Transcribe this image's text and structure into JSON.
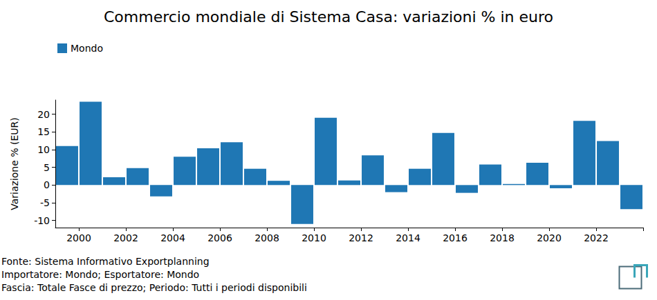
{
  "chart_data": {
    "type": "bar",
    "title": "Commercio mondiale di Sistema Casa: variazioni % in euro",
    "y_label": "Variazione % (EUR)",
    "categories": [
      null,
      "2000",
      null,
      "2002",
      null,
      "2004",
      null,
      "2006",
      null,
      "2008",
      null,
      "2010",
      null,
      "2012",
      null,
      "2014",
      null,
      "2016",
      null,
      "2018",
      null,
      "2020",
      null,
      "2022",
      null
    ],
    "series": [
      {
        "name": "Mondo",
        "color": "#1f77b4",
        "values": [
          11,
          23.5,
          2.2,
          4.8,
          -3.2,
          8,
          10.4,
          12.1,
          4.6,
          1.2,
          -11,
          19,
          1.3,
          8.4,
          -2,
          4.6,
          14.7,
          -2.2,
          5.8,
          0.3,
          6.3,
          -0.9,
          18.1,
          12.4,
          -6.8
        ]
      }
    ],
    "ylim": [
      -12,
      24
    ],
    "yticks": [
      -10,
      -5,
      0,
      5,
      10,
      15,
      20
    ],
    "grid": false,
    "legend": "upper left",
    "annotations": [
      "Fonte: Sistema Informativo Exportplanning",
      "Importatore: Mondo; Esportatore: Mondo",
      "Fascia: Totale Fasce di prezzo; Periodo: Tutti i periodi disponibili"
    ]
  }
}
